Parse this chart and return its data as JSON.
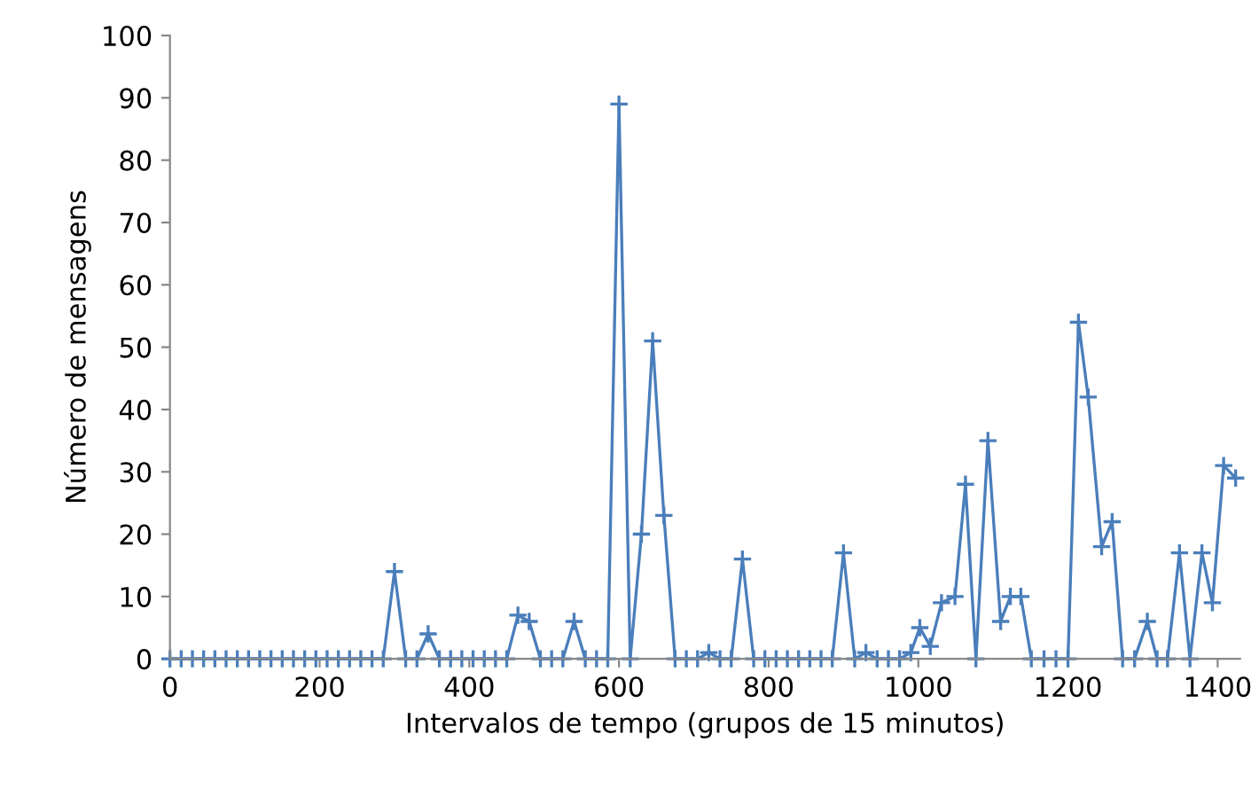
{
  "chart_data": {
    "type": "line",
    "xlabel": "Intervalos de tempo (grupos de 15 minutos)",
    "ylabel": "Número de mensagens",
    "xlim": [
      0,
      1430
    ],
    "ylim": [
      0,
      100
    ],
    "xticks": [
      0,
      200,
      400,
      600,
      800,
      1000,
      1200,
      1400
    ],
    "yticks": [
      0,
      10,
      20,
      30,
      40,
      50,
      60,
      70,
      80,
      90,
      100
    ],
    "grid": false,
    "legend": false,
    "marker": "cross",
    "line_style": "solid",
    "series": [
      {
        "color": "#4a7ebb",
        "x": [
          0,
          15,
          30,
          45,
          60,
          75,
          90,
          105,
          120,
          135,
          150,
          165,
          180,
          195,
          210,
          225,
          240,
          255,
          270,
          285,
          300,
          315,
          330,
          345,
          360,
          375,
          390,
          405,
          420,
          435,
          450,
          465,
          480,
          495,
          510,
          525,
          540,
          555,
          570,
          585,
          600,
          615,
          630,
          645,
          660,
          675,
          690,
          705,
          720,
          735,
          750,
          765,
          780,
          795,
          810,
          825,
          840,
          855,
          870,
          885,
          900,
          915,
          930,
          945,
          960,
          975,
          990,
          1002,
          1016,
          1031,
          1049,
          1063,
          1077,
          1093,
          1110,
          1123,
          1137,
          1151,
          1168,
          1184,
          1200,
          1214,
          1227,
          1245,
          1259,
          1273,
          1289,
          1306,
          1319,
          1333,
          1349,
          1363,
          1379,
          1393,
          1408,
          1424
        ],
        "values": [
          0,
          0,
          0,
          0,
          0,
          0,
          0,
          0,
          0,
          0,
          0,
          0,
          0,
          0,
          0,
          0,
          0,
          0,
          0,
          0,
          14,
          0,
          0,
          4,
          0,
          0,
          0,
          0,
          0,
          0,
          0,
          7,
          6,
          0,
          0,
          0,
          6,
          0,
          0,
          0,
          89,
          0,
          20,
          51,
          23,
          0,
          0,
          0,
          1,
          0,
          0,
          16,
          0,
          0,
          0,
          0,
          0,
          0,
          0,
          0,
          17,
          0,
          1,
          0,
          0,
          0,
          1,
          5,
          2,
          9,
          10,
          28,
          0,
          35,
          6,
          10,
          10,
          0,
          0,
          0,
          0,
          54,
          42,
          18,
          22,
          0,
          0,
          6,
          0,
          0,
          17,
          0,
          17,
          9,
          31,
          29
        ]
      }
    ]
  }
}
